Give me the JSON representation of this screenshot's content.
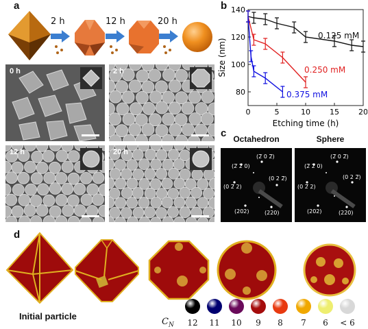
{
  "panels": {
    "a": "a",
    "b": "b",
    "c": "c",
    "d": "d"
  },
  "schematic": {
    "steps": [
      "2 h",
      "12 h",
      "20 h"
    ]
  },
  "sem": [
    {
      "label": "0 h"
    },
    {
      "label": "2 h"
    },
    {
      "label": "12 h"
    },
    {
      "label": "20 h"
    }
  ],
  "chart_data": {
    "type": "line",
    "xlabel": "Etching time (h)",
    "ylabel": "Size (nm)",
    "xlim": [
      0,
      20
    ],
    "ylim": [
      70,
      140
    ],
    "xticks": [
      0,
      5,
      10,
      15,
      20
    ],
    "yticks": [
      80,
      100,
      120,
      140
    ],
    "series": [
      {
        "name": "0.125 mM",
        "color": "#111111",
        "x": [
          0,
          1,
          3,
          5,
          8,
          10,
          15,
          18,
          20
        ],
        "y": [
          135,
          134,
          133,
          130,
          127,
          120,
          117,
          114,
          113
        ],
        "err": [
          4,
          4,
          4,
          4,
          4,
          4,
          4,
          4,
          4
        ]
      },
      {
        "name": "0.250 mM",
        "color": "#e02020",
        "x": [
          0,
          1,
          3,
          6,
          10
        ],
        "y": [
          135,
          118,
          115,
          105,
          87
        ],
        "err": [
          4,
          4,
          4,
          4,
          4
        ]
      },
      {
        "name": "0.375 mM",
        "color": "#1010e0",
        "x": [
          0,
          0.5,
          1,
          3,
          6
        ],
        "y": [
          135,
          106,
          95,
          90,
          80
        ],
        "err": [
          4,
          4,
          4,
          4,
          4
        ]
      }
    ]
  },
  "diffraction": {
    "left_title": "Octahedron",
    "right_title": "Sphere",
    "indices": [
      "(2̅ 2̅ 0)",
      "(2̅ 0 2̅)",
      "(0 2̅ 2)",
      "(0 2 2̅)",
      "(202)",
      "(220)"
    ]
  },
  "particles": {
    "initial_label": "Initial particle",
    "cn_axis_label": "C",
    "cn_axis_sub": "N",
    "legend": [
      {
        "value": "12",
        "color": "#000000"
      },
      {
        "value": "11",
        "color": "#000070"
      },
      {
        "value": "10",
        "color": "#6a0a5a"
      },
      {
        "value": "9",
        "color": "#a50c0c"
      },
      {
        "value": "8",
        "color": "#e83a10"
      },
      {
        "value": "7",
        "color": "#f0a800"
      },
      {
        "value": "6",
        "color": "#eeee70"
      },
      {
        "value": "< 6",
        "color": "#d8d8d8"
      }
    ]
  }
}
